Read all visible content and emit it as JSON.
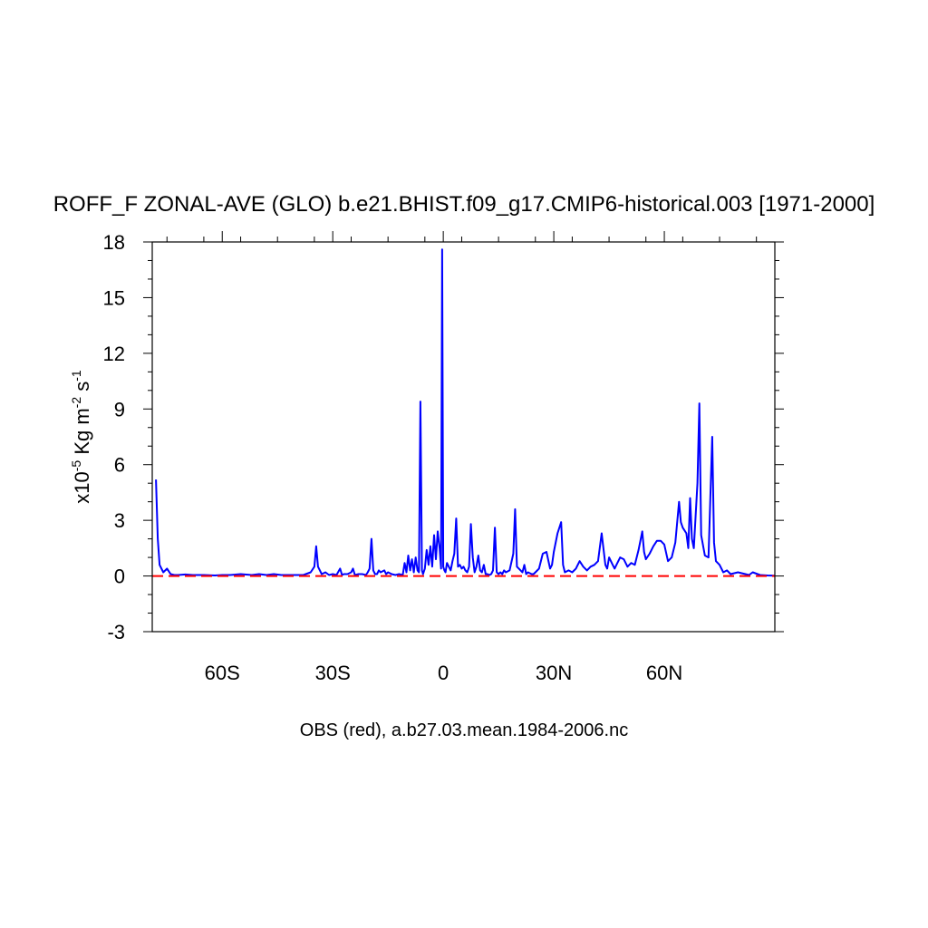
{
  "chart_data": {
    "type": "line",
    "title": "ROFF_F ZONAL-AVE (GLO) b.e21.BHIST.f09_g17.CMIP6-historical.003 [1971-2000]",
    "ylabel": {
      "prefix": "x10",
      "exp": "-5",
      "unit": " Kg m",
      "exp2": "-2",
      "unit2": " s",
      "exp3": "-1"
    },
    "xlim": [
      -79,
      90
    ],
    "ylim": [
      -3,
      18
    ],
    "xticks": [
      {
        "value": -60,
        "label": "60S"
      },
      {
        "value": -30,
        "label": "30S"
      },
      {
        "value": 0,
        "label": "0"
      },
      {
        "value": 30,
        "label": "30N"
      },
      {
        "value": 60,
        "label": "60N"
      }
    ],
    "yticks": [
      -3,
      0,
      3,
      6,
      9,
      12,
      15,
      18
    ],
    "xlabel": "OBS (red), a.b27.03.mean.1984-2006.nc",
    "series": [
      {
        "color": "#0000ff",
        "x": [
          -78,
          -77.5,
          -77,
          -76,
          -75,
          -74,
          -73,
          -72,
          -70,
          -68,
          -65,
          -62,
          -60,
          -58,
          -55,
          -52,
          -50,
          -48,
          -46,
          -44,
          -42,
          -40,
          -38,
          -36,
          -35,
          -34.5,
          -34,
          -33,
          -32,
          -31,
          -30,
          -29,
          -28,
          -27.5,
          -27,
          -26,
          -25,
          -24.5,
          -24,
          -23,
          -22,
          -21,
          -20.5,
          -20,
          -19.5,
          -19,
          -18.5,
          -18,
          -17.5,
          -17,
          -16,
          -15.5,
          -15,
          -14,
          -13,
          -12,
          -11,
          -10.5,
          -10,
          -9.5,
          -9,
          -8.5,
          -8,
          -7.5,
          -7,
          -6.6,
          -6.2,
          -5.8,
          -5.5,
          -5,
          -4.5,
          -4,
          -3.5,
          -3,
          -2.5,
          -2,
          -1.5,
          -1,
          -0.6,
          -0.3,
          0,
          0.3,
          0.6,
          1,
          1.5,
          2,
          2.5,
          3,
          3.5,
          4,
          4.5,
          5,
          5.5,
          6,
          6.5,
          7,
          7.5,
          8,
          8.5,
          9,
          9.5,
          10,
          10.5,
          11,
          11.5,
          12,
          12.5,
          13,
          13.5,
          14,
          14.5,
          15,
          15.5,
          16,
          16.5,
          17,
          18,
          19,
          19.5,
          20,
          21,
          21.5,
          22,
          22.5,
          23,
          24,
          24.5,
          25,
          26,
          27,
          28,
          29,
          29.5,
          30,
          31,
          32,
          32.5,
          33,
          34,
          35,
          36,
          37,
          38,
          39,
          40,
          41,
          42,
          43,
          44,
          44.5,
          45,
          46,
          46.5,
          47,
          48,
          49,
          50,
          51,
          52,
          53,
          54,
          54.5,
          55,
          56,
          57,
          58,
          59,
          60,
          61,
          62,
          63,
          64,
          64.5,
          65,
          66,
          66.5,
          67,
          67.5,
          68,
          69,
          69.5,
          70,
          71,
          72,
          73,
          73.5,
          74,
          75,
          76,
          77,
          78,
          80,
          82,
          83,
          84,
          86,
          88,
          90
        ],
        "y": [
          5.2,
          2.0,
          0.6,
          0.2,
          0.4,
          0.1,
          0.05,
          0.05,
          0.08,
          0.05,
          0.05,
          0.03,
          0.05,
          0.05,
          0.1,
          0.05,
          0.1,
          0.05,
          0.1,
          0.05,
          0.05,
          0.05,
          0.05,
          0.2,
          0.5,
          1.6,
          0.5,
          0.1,
          0.2,
          0.05,
          0.1,
          0.05,
          0.4,
          0.05,
          0.1,
          0.1,
          0.2,
          0.4,
          0.05,
          0.1,
          0.1,
          0.05,
          0.2,
          0.4,
          2.0,
          0.3,
          0.1,
          0.1,
          0.3,
          0.2,
          0.3,
          0.1,
          0.2,
          0.1,
          0.05,
          0.1,
          0.05,
          0.7,
          0.2,
          1.1,
          0.3,
          0.9,
          0.2,
          1.0,
          0.3,
          0.2,
          9.4,
          0.3,
          0.1,
          0.4,
          1.4,
          0.6,
          1.6,
          0.5,
          2.2,
          0.9,
          2.4,
          1.5,
          0.4,
          17.6,
          0.5,
          0.3,
          0.2,
          0.7,
          0.5,
          0.3,
          0.8,
          1.2,
          3.1,
          0.5,
          0.6,
          0.4,
          0.5,
          0.3,
          0.2,
          0.5,
          2.8,
          1.0,
          0.2,
          0.5,
          1.1,
          0.3,
          0.2,
          0.6,
          0.1,
          0.1,
          0.05,
          0.1,
          0.3,
          2.6,
          0.2,
          0.1,
          0.2,
          0.1,
          0.3,
          0.2,
          0.3,
          1.2,
          3.6,
          0.5,
          0.3,
          0.2,
          0.6,
          0.1,
          0.2,
          0.1,
          0.1,
          0.2,
          0.4,
          1.2,
          1.3,
          0.4,
          0.6,
          1.3,
          2.3,
          2.9,
          0.6,
          0.2,
          0.3,
          0.2,
          0.4,
          0.8,
          0.5,
          0.3,
          0.5,
          0.6,
          0.8,
          2.3,
          0.6,
          0.4,
          1.0,
          0.6,
          0.4,
          0.6,
          1.0,
          0.9,
          0.5,
          0.7,
          0.6,
          1.4,
          2.4,
          1.3,
          0.9,
          1.2,
          1.6,
          1.9,
          1.9,
          1.7,
          0.8,
          1.0,
          1.8,
          4.0,
          2.9,
          2.6,
          2.3,
          1.5,
          4.2,
          2.0,
          1.5,
          5.0,
          9.3,
          2.2,
          1.1,
          1.0,
          7.5,
          1.8,
          0.8,
          0.6,
          0.2,
          0.3,
          0.1,
          0.2,
          0.1,
          0.05,
          0.2,
          0.05,
          0.03,
          0.02
        ]
      },
      {
        "color": "#ff0000",
        "dashed": true,
        "x": [
          -79,
          90
        ],
        "y": [
          0,
          0
        ]
      }
    ]
  }
}
